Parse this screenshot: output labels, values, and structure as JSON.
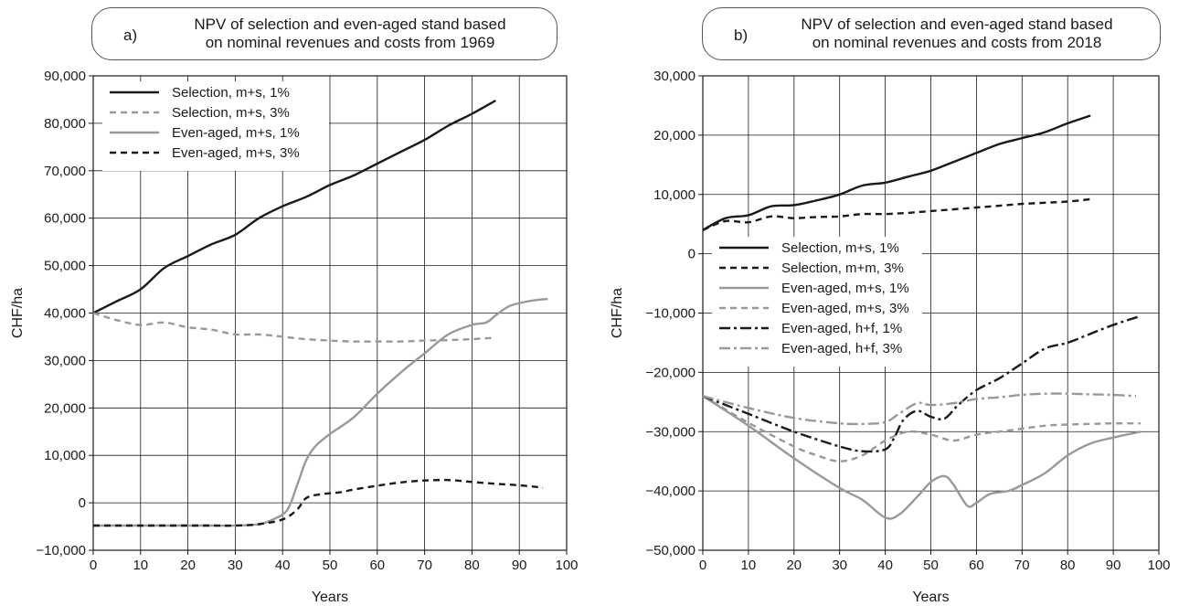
{
  "chart_data": [
    {
      "type": "line",
      "panel_label": "a)",
      "title": "NPV of selection and even-aged stand based on nominal revenues and costs from 1969",
      "title_lines": [
        "NPV of selection and even-aged stand based",
        "on nominal revenues and costs from 1969"
      ],
      "xlabel": "Years",
      "ylabel": "CHF/ha",
      "xlim": [
        0,
        100
      ],
      "ylim": [
        -10000,
        90000
      ],
      "x_ticks": [
        0,
        10,
        20,
        30,
        40,
        50,
        60,
        70,
        80,
        90,
        100
      ],
      "x_tick_labels": [
        "0",
        "10",
        "20",
        "30",
        "40",
        "50",
        "60",
        "70",
        "80",
        "90",
        "100"
      ],
      "y_ticks": [
        -10000,
        0,
        10000,
        20000,
        30000,
        40000,
        50000,
        60000,
        70000,
        80000,
        90000
      ],
      "y_tick_labels": [
        "−10,000",
        "0",
        "10,000",
        "20,000",
        "30,000",
        "40,000",
        "50,000",
        "60,000",
        "70,000",
        "80,000",
        "90,000"
      ],
      "grid": true,
      "legend_position": "top-left",
      "series": [
        {
          "name": "Selection, m+s, 1%",
          "color": "#1a1a1a",
          "dash": "solid",
          "x": [
            0,
            5,
            10,
            15,
            20,
            25,
            30,
            35,
            40,
            45,
            50,
            55,
            60,
            65,
            70,
            75,
            80,
            85
          ],
          "y": [
            40000,
            42500,
            45000,
            49500,
            52000,
            54500,
            56500,
            60000,
            62500,
            64500,
            67000,
            69000,
            71500,
            74000,
            76500,
            79500,
            82000,
            84800
          ]
        },
        {
          "name": "Selection, m+s, 3%",
          "color": "#999999",
          "dash": "dashed",
          "x": [
            0,
            5,
            10,
            15,
            20,
            25,
            30,
            35,
            40,
            45,
            50,
            55,
            60,
            65,
            70,
            75,
            80,
            85
          ],
          "y": [
            40000,
            38500,
            37500,
            38000,
            37000,
            36500,
            35500,
            35500,
            35000,
            34500,
            34200,
            34000,
            34000,
            34000,
            34200,
            34300,
            34500,
            34800
          ]
        },
        {
          "name": "Even-aged, m+s, 1%",
          "color": "#999999",
          "dash": "solid",
          "x": [
            0,
            5,
            10,
            15,
            20,
            25,
            30,
            35,
            38,
            41,
            43,
            45,
            47,
            50,
            55,
            60,
            65,
            70,
            75,
            80,
            83,
            85,
            88,
            92,
            96
          ],
          "y": [
            -4800,
            -4800,
            -4800,
            -4800,
            -4800,
            -4800,
            -4800,
            -4500,
            -3500,
            -1500,
            3500,
            9000,
            12000,
            14500,
            18000,
            23000,
            27500,
            31500,
            35500,
            37500,
            38000,
            39500,
            41500,
            42500,
            43000
          ]
        },
        {
          "name": "Even-aged, m+s, 3%",
          "color": "#1a1a1a",
          "dash": "dashed",
          "x": [
            0,
            5,
            10,
            15,
            20,
            25,
            30,
            35,
            40,
            43,
            45,
            48,
            52,
            55,
            60,
            65,
            70,
            75,
            80,
            85,
            90,
            95
          ],
          "y": [
            -4800,
            -4800,
            -4800,
            -4800,
            -4800,
            -4800,
            -4800,
            -4500,
            -3500,
            -1500,
            1000,
            1800,
            2200,
            2800,
            3600,
            4300,
            4700,
            4800,
            4400,
            4000,
            3700,
            3200
          ]
        }
      ]
    },
    {
      "type": "line",
      "panel_label": "b)",
      "title": "NPV of selection and even-aged stand based on nominal revenues and costs from 2018",
      "title_lines": [
        "NPV of selection and even-aged stand based",
        "on nominal revenues and costs from 2018"
      ],
      "xlabel": "Years",
      "ylabel": "CHF/ha",
      "xlim": [
        0,
        100
      ],
      "ylim": [
        -50000,
        30000
      ],
      "x_ticks": [
        0,
        10,
        20,
        30,
        40,
        50,
        60,
        70,
        80,
        90,
        100
      ],
      "x_tick_labels": [
        "0",
        "10",
        "20",
        "30",
        "40",
        "50",
        "60",
        "70",
        "80",
        "90",
        "100"
      ],
      "y_ticks": [
        -50000,
        -40000,
        -30000,
        -20000,
        -10000,
        0,
        10000,
        20000,
        30000
      ],
      "y_tick_labels": [
        "−50,000",
        "−40,000",
        "−30,000",
        "−20,000",
        "−10,000",
        "0",
        "10,000",
        "20,000",
        "30,000"
      ],
      "grid": true,
      "legend_position": "center-left",
      "series": [
        {
          "name": "Selection, m+s, 1%",
          "color": "#1a1a1a",
          "dash": "solid",
          "x": [
            0,
            5,
            10,
            15,
            20,
            25,
            30,
            35,
            40,
            45,
            50,
            55,
            60,
            65,
            70,
            75,
            80,
            85
          ],
          "y": [
            4000,
            6000,
            6500,
            8000,
            8200,
            9000,
            10000,
            11500,
            12000,
            13000,
            14000,
            15500,
            17000,
            18500,
            19500,
            20500,
            22000,
            23300
          ]
        },
        {
          "name": "Selection, m+m, 3%",
          "color": "#1a1a1a",
          "dash": "dashed",
          "x": [
            0,
            5,
            10,
            15,
            20,
            25,
            30,
            35,
            40,
            45,
            50,
            55,
            60,
            65,
            70,
            75,
            80,
            85
          ],
          "y": [
            4000,
            5500,
            5300,
            6300,
            6000,
            6200,
            6300,
            6700,
            6700,
            6900,
            7200,
            7500,
            7800,
            8100,
            8400,
            8600,
            8800,
            9200
          ]
        },
        {
          "name": "Even-aged, m+s, 1%",
          "color": "#999999",
          "dash": "solid",
          "x": [
            0,
            10,
            20,
            30,
            35,
            40,
            43,
            47,
            50,
            53,
            55,
            58,
            60,
            63,
            67,
            70,
            75,
            80,
            85,
            90,
            96
          ],
          "y": [
            -24000,
            -29000,
            -34500,
            -39500,
            -41500,
            -44500,
            -44000,
            -41000,
            -38500,
            -37500,
            -39000,
            -42500,
            -42000,
            -40500,
            -40000,
            -39000,
            -37000,
            -34000,
            -32000,
            -31000,
            -30000
          ]
        },
        {
          "name": "Even-aged, m+s, 3%",
          "color": "#999999",
          "dash": "dashed",
          "x": [
            0,
            10,
            20,
            25,
            30,
            35,
            40,
            45,
            50,
            55,
            60,
            65,
            70,
            75,
            80,
            85,
            90,
            96
          ],
          "y": [
            -24000,
            -28500,
            -32500,
            -34000,
            -35000,
            -34000,
            -31500,
            -30000,
            -30500,
            -31500,
            -30500,
            -30000,
            -29500,
            -29000,
            -28800,
            -28700,
            -28600,
            -28600
          ]
        },
        {
          "name": "Even-aged, h+f, 1%",
          "color": "#1a1a1a",
          "dash": "dashdot",
          "x": [
            0,
            10,
            20,
            30,
            35,
            40,
            42,
            44,
            47,
            50,
            53,
            56,
            60,
            65,
            70,
            75,
            80,
            85,
            90,
            96
          ],
          "y": [
            -24000,
            -27000,
            -30000,
            -32500,
            -33300,
            -33000,
            -31000,
            -28000,
            -26500,
            -27500,
            -27800,
            -25500,
            -23000,
            -21000,
            -18500,
            -16000,
            -15000,
            -13500,
            -12000,
            -10500
          ]
        },
        {
          "name": "Even-aged, h+f, 3%",
          "color": "#999999",
          "dash": "dashdot",
          "x": [
            0,
            10,
            20,
            30,
            35,
            40,
            43,
            47,
            50,
            55,
            60,
            65,
            70,
            75,
            80,
            85,
            90,
            95
          ],
          "y": [
            -24000,
            -26000,
            -27700,
            -28600,
            -28700,
            -28400,
            -27000,
            -25200,
            -25500,
            -25200,
            -24500,
            -24200,
            -23800,
            -23600,
            -23600,
            -23700,
            -23800,
            -24000
          ]
        }
      ]
    }
  ]
}
